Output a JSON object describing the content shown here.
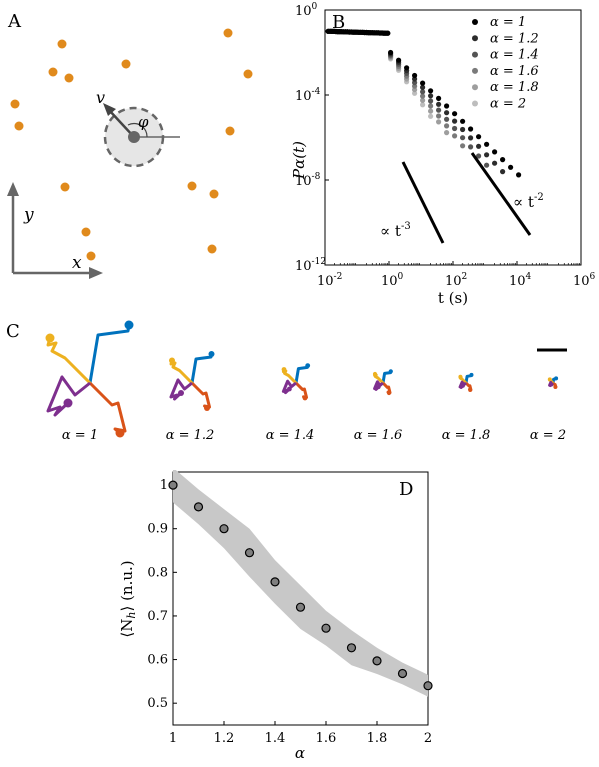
{
  "panels": {
    "A": {
      "label": "A",
      "x_axis_label": "x",
      "y_axis_label": "y",
      "v_label": "v",
      "angle_label": "φ",
      "particle_color": "#e08a1c",
      "particles": [
        [
          62,
          44
        ],
        [
          228,
          33
        ],
        [
          126,
          64
        ],
        [
          53,
          72
        ],
        [
          69,
          78
        ],
        [
          248,
          74
        ],
        [
          15,
          104
        ],
        [
          19,
          126
        ],
        [
          230,
          131
        ],
        [
          65,
          187
        ],
        [
          192,
          186
        ],
        [
          214,
          194
        ],
        [
          86,
          232
        ],
        [
          91,
          256
        ],
        [
          212,
          249
        ]
      ]
    },
    "B": {
      "label": "B",
      "chart_data": {
        "type": "scatter",
        "yaxis_label": "Pα(t)",
        "xaxis_label": "t  (s)",
        "x_log": true,
        "y_log": true,
        "xlim_exp": [
          -2,
          6
        ],
        "ylim_exp": [
          -12,
          0
        ],
        "xtick_exps": [
          -2,
          0,
          2,
          4,
          6
        ],
        "ytick_exps": [
          -12,
          -8,
          -4,
          0
        ],
        "tick_base": "10",
        "series": [
          {
            "name": "α = 1",
            "alpha": 1.0,
            "color": "#000000"
          },
          {
            "name": "α = 1.2",
            "alpha": 1.2,
            "color": "#2c2c2c"
          },
          {
            "name": "α = 1.4",
            "alpha": 1.4,
            "color": "#545454"
          },
          {
            "name": "α = 1.6",
            "alpha": 1.6,
            "color": "#7a7a7a"
          },
          {
            "name": "α = 1.8",
            "alpha": 1.8,
            "color": "#9e9e9e"
          },
          {
            "name": "α = 2",
            "alpha": 2.0,
            "color": "#bdbdbd"
          }
        ],
        "legend_position": "top-right",
        "annotations": [
          "∝ t",
          "-3",
          "∝ t",
          "-2"
        ]
      }
    },
    "C": {
      "label": "C",
      "trajectory_labels": [
        "α = 1",
        "α = 1.2",
        "α = 1.4",
        "α = 1.6",
        "α = 1.8",
        "α = 2"
      ],
      "track_colors": [
        "#0072bd",
        "#d95319",
        "#edb120",
        "#7e2f8e"
      ]
    },
    "D": {
      "label": "D",
      "chart_data": {
        "type": "scatter",
        "xlabel": "α",
        "ylabel": "⟨N",
        "ylabel_sub": "h",
        "ylabel_tail": "⟩ (n.u.)",
        "xlim": [
          1,
          2
        ],
        "ylim": [
          0.45,
          1.03
        ],
        "xticks": [
          "1",
          "1.2",
          "1.4",
          "1.6",
          "1.8",
          "2"
        ],
        "yticks": [
          "0.5",
          "0.6",
          "0.7",
          "0.8",
          "0.9",
          "1"
        ],
        "x": [
          1.0,
          1.1,
          1.2,
          1.3,
          1.4,
          1.5,
          1.6,
          1.7,
          1.8,
          1.9,
          2.0
        ],
        "y": [
          1.0,
          0.95,
          0.9,
          0.845,
          0.778,
          0.72,
          0.672,
          0.627,
          0.597,
          0.568,
          0.54
        ],
        "band_half_width": [
          0.04,
          0.04,
          0.045,
          0.055,
          0.05,
          0.05,
          0.04,
          0.04,
          0.03,
          0.025,
          0.025
        ],
        "marker_color": "#7f7f7f",
        "band_color": "#c8c8c8"
      }
    }
  }
}
